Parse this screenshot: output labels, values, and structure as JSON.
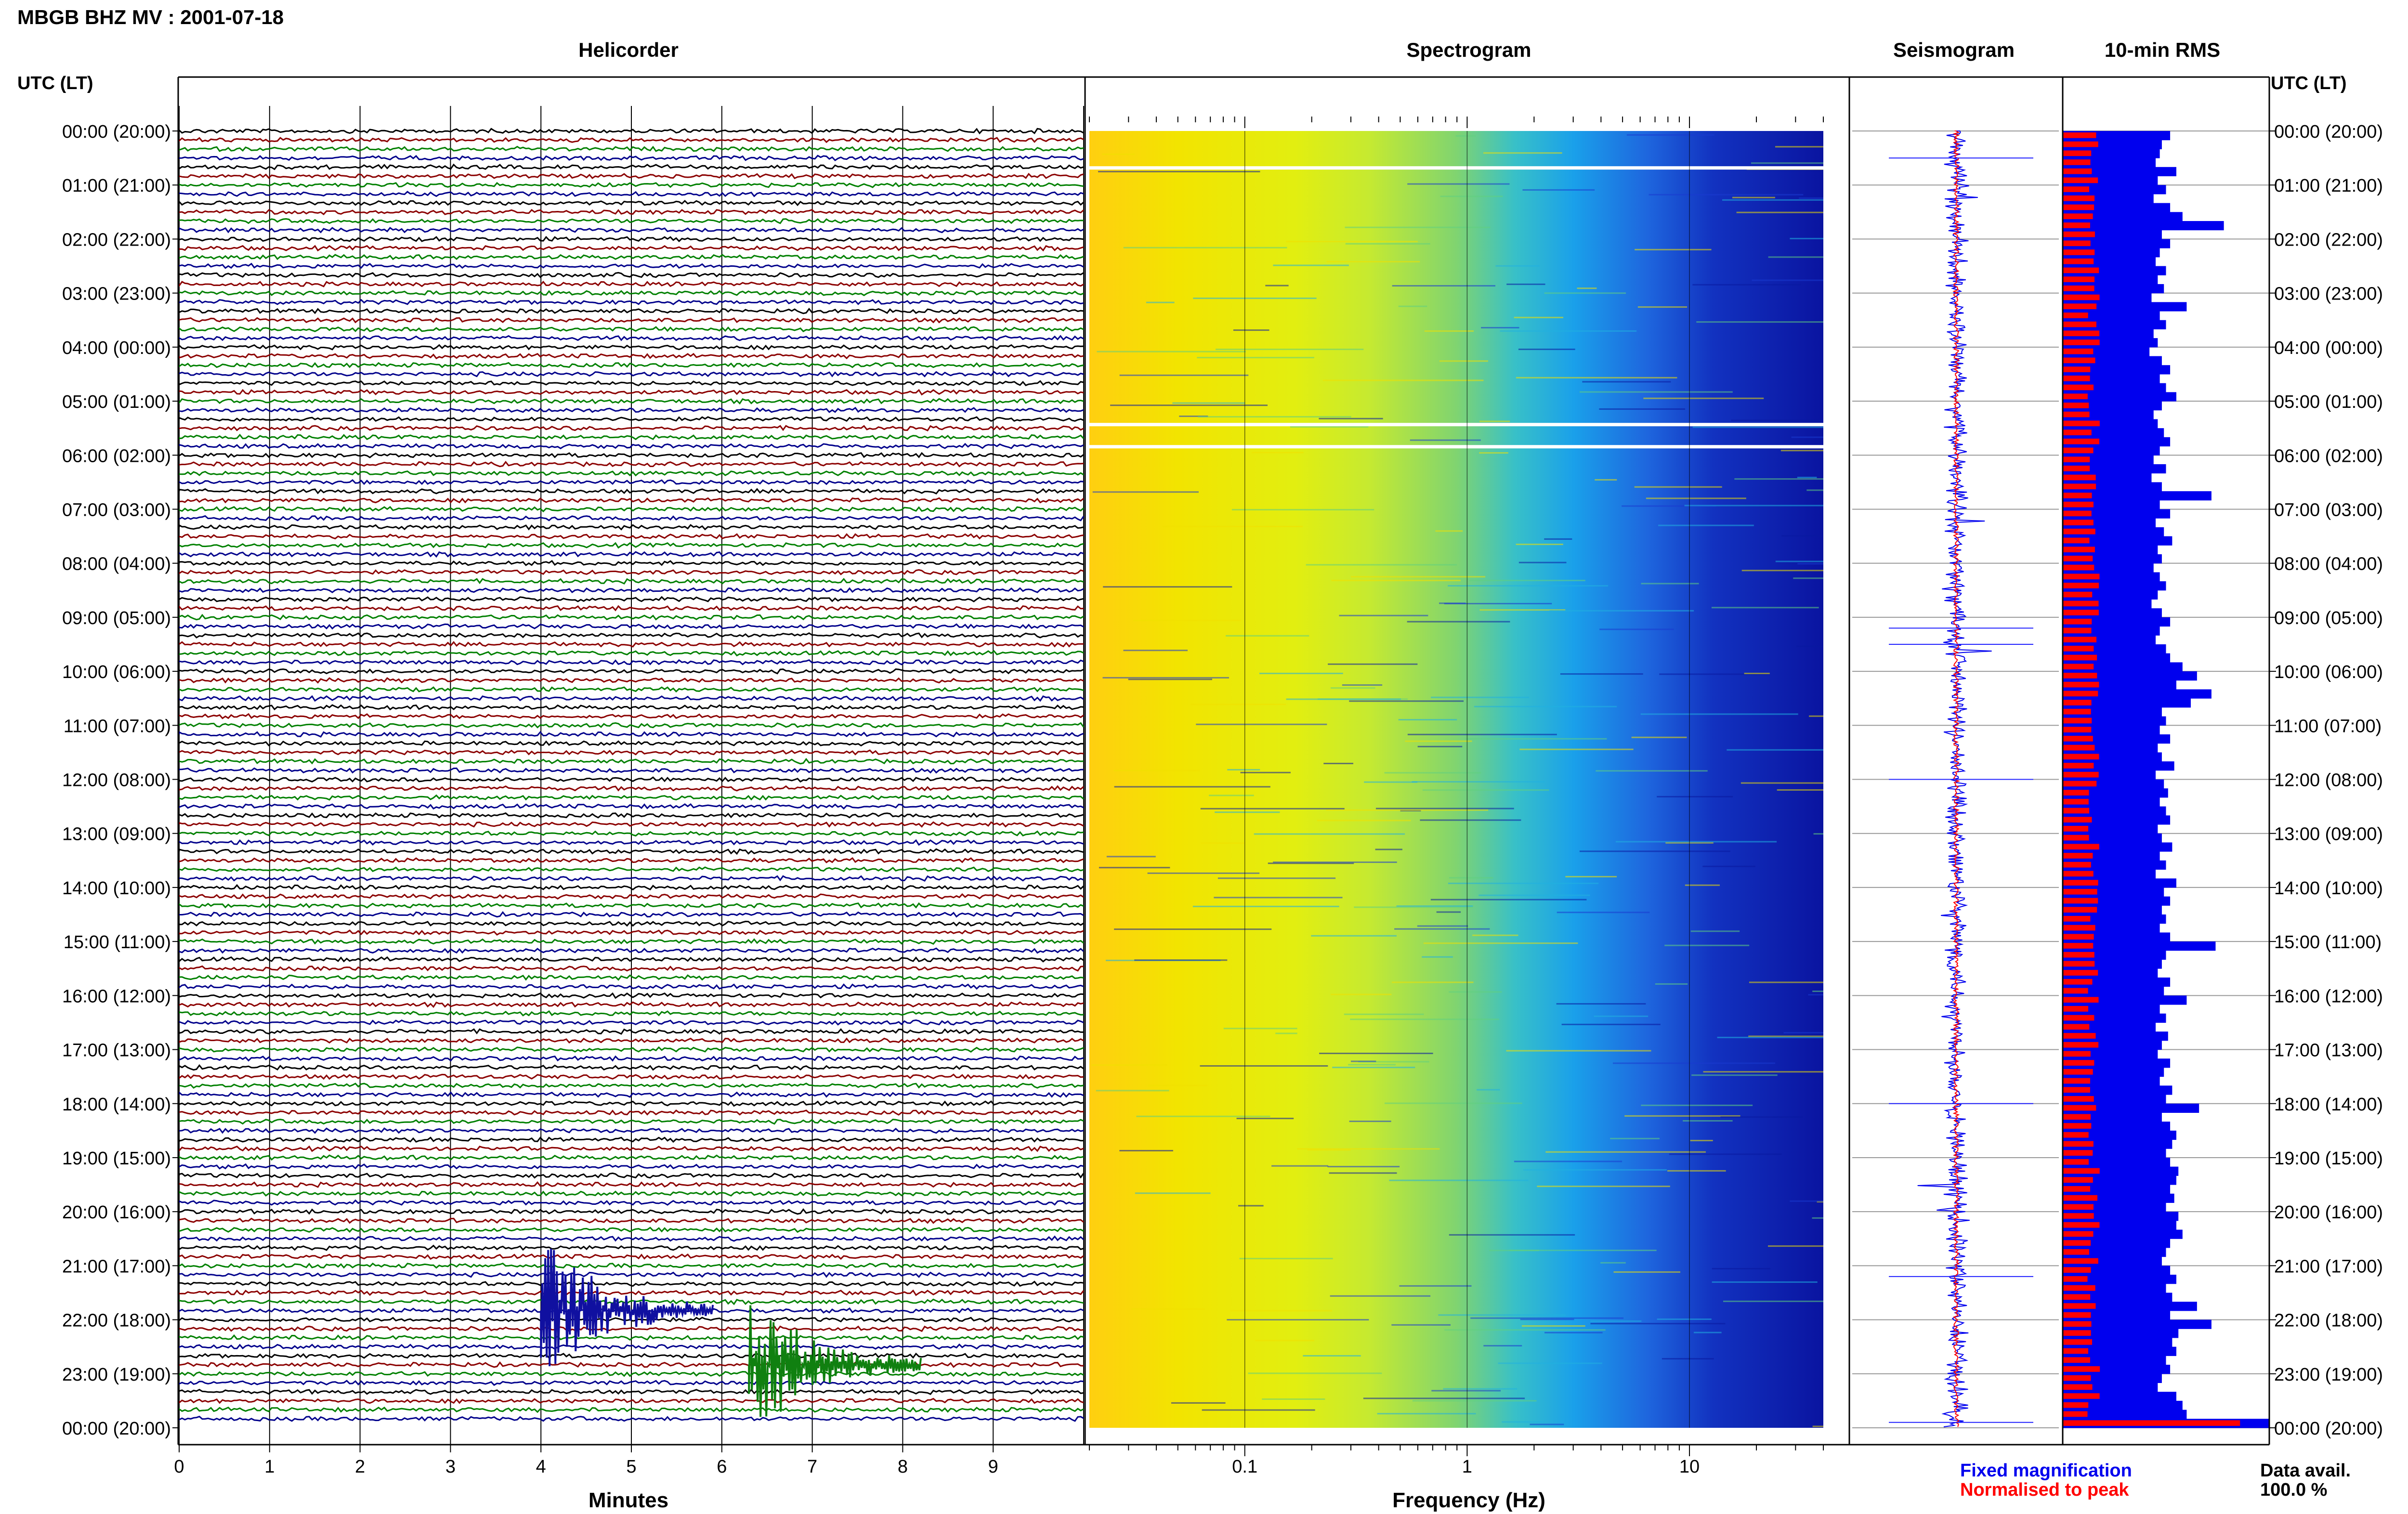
{
  "header": {
    "station_title": "MBGB BHZ MV : 2001-07-18",
    "utc_lt_left": "UTC (LT)",
    "utc_lt_right": "UTC (LT)"
  },
  "panels": {
    "helicorder_title": "Helicorder",
    "spectrogram_title": "Spectrogram",
    "seismogram_title": "Seismogram",
    "rms_title": "10-min RMS"
  },
  "time_labels": [
    "00:00 (20:00)",
    "01:00 (21:00)",
    "02:00 (22:00)",
    "03:00 (23:00)",
    "04:00 (00:00)",
    "05:00 (01:00)",
    "06:00 (02:00)",
    "07:00 (03:00)",
    "08:00 (04:00)",
    "09:00 (05:00)",
    "10:00 (06:00)",
    "11:00 (07:00)",
    "12:00 (08:00)",
    "13:00 (09:00)",
    "14:00 (10:00)",
    "15:00 (11:00)",
    "16:00 (12:00)",
    "17:00 (13:00)",
    "18:00 (14:00)",
    "19:00 (15:00)",
    "20:00 (16:00)",
    "21:00 (17:00)",
    "22:00 (18:00)",
    "23:00 (19:00)",
    "00:00 (20:00)"
  ],
  "helicorder_x_ticks": [
    "0",
    "1",
    "2",
    "3",
    "4",
    "5",
    "6",
    "7",
    "8",
    "9"
  ],
  "helicorder_xlabel": "Minutes",
  "spectrogram_x_ticks": [
    "0.1",
    "1",
    "10"
  ],
  "spectrogram_xlabel": "Frequency (Hz)",
  "legend": {
    "fixed": "Fixed magnification",
    "normalised": "Normalised to peak",
    "fixed_color": "#0000ee",
    "normalised_color": "#ff0000"
  },
  "data_avail": {
    "label": "Data avail.",
    "value": "100.0 %"
  },
  "colors": {
    "trace_cycle": [
      "#000000",
      "#8b0000",
      "#008000",
      "#00008b"
    ],
    "rms_fixed": "#0000ee",
    "rms_normalised": "#ff0000",
    "spectrogram_ramp": [
      "#ffd000",
      "#f0ea00",
      "#b8e030",
      "#60d090",
      "#18b8e8",
      "#1e6ee0",
      "#0a1aa8"
    ]
  },
  "chart_data": [
    {
      "type": "line",
      "title": "Helicorder",
      "xlabel": "Minutes",
      "xlim": [
        0,
        10
      ],
      "rows_per_hour": 6,
      "hours": 24,
      "events": [
        {
          "hour": 21.83,
          "minute": 4.0,
          "label": ""
        },
        {
          "hour": 22.83,
          "minute": 6.3,
          "label": ""
        }
      ]
    },
    {
      "type": "heatmap",
      "title": "Spectrogram",
      "xlabel": "Frequency (Hz)",
      "xscale": "log",
      "xlim": [
        0.02,
        40
      ],
      "y": "time 00:00-24:00 UTC",
      "data_gaps_hours": [
        0.67,
        5.42,
        5.83
      ]
    },
    {
      "type": "line",
      "title": "Seismogram",
      "series": [
        {
          "name": "Fixed magnification"
        },
        {
          "name": "Normalised to peak"
        }
      ]
    },
    {
      "type": "bar",
      "title": "10-min RMS",
      "orientation": "horizontal",
      "bins": 144,
      "series": [
        {
          "name": "Fixed magnification",
          "values": [
            0.52,
            0.48,
            0.47,
            0.45,
            0.55,
            0.46,
            0.5,
            0.44,
            0.52,
            0.58,
            0.78,
            0.48,
            0.52,
            0.47,
            0.45,
            0.5,
            0.46,
            0.49,
            0.43,
            0.6,
            0.47,
            0.5,
            0.44,
            0.46,
            0.42,
            0.48,
            0.52,
            0.47,
            0.5,
            0.55,
            0.48,
            0.44,
            0.46,
            0.49,
            0.52,
            0.47,
            0.44,
            0.5,
            0.43,
            0.48,
            0.72,
            0.47,
            0.52,
            0.45,
            0.49,
            0.53,
            0.46,
            0.48,
            0.44,
            0.47,
            0.5,
            0.46,
            0.43,
            0.48,
            0.52,
            0.47,
            0.45,
            0.5,
            0.52,
            0.58,
            0.65,
            0.55,
            0.72,
            0.62,
            0.48,
            0.5,
            0.47,
            0.52,
            0.46,
            0.48,
            0.54,
            0.45,
            0.49,
            0.51,
            0.47,
            0.5,
            0.52,
            0.46,
            0.48,
            0.53,
            0.47,
            0.5,
            0.45,
            0.55,
            0.49,
            0.52,
            0.48,
            0.5,
            0.47,
            0.52,
            0.74,
            0.5,
            0.48,
            0.46,
            0.52,
            0.49,
            0.6,
            0.47,
            0.5,
            0.45,
            0.51,
            0.48,
            0.46,
            0.52,
            0.49,
            0.47,
            0.53,
            0.5,
            0.66,
            0.48,
            0.52,
            0.55,
            0.53,
            0.5,
            0.52,
            0.56,
            0.55,
            0.52,
            0.54,
            0.5,
            0.56,
            0.55,
            0.58,
            0.52,
            0.5,
            0.48,
            0.52,
            0.55,
            0.5,
            0.53,
            0.65,
            0.52,
            0.72,
            0.56,
            0.53,
            0.55,
            0.5,
            0.52,
            0.48,
            0.46,
            0.55,
            0.58,
            0.6,
            1.0
          ]
        },
        {
          "name": "Normalised to peak"
        }
      ]
    }
  ]
}
